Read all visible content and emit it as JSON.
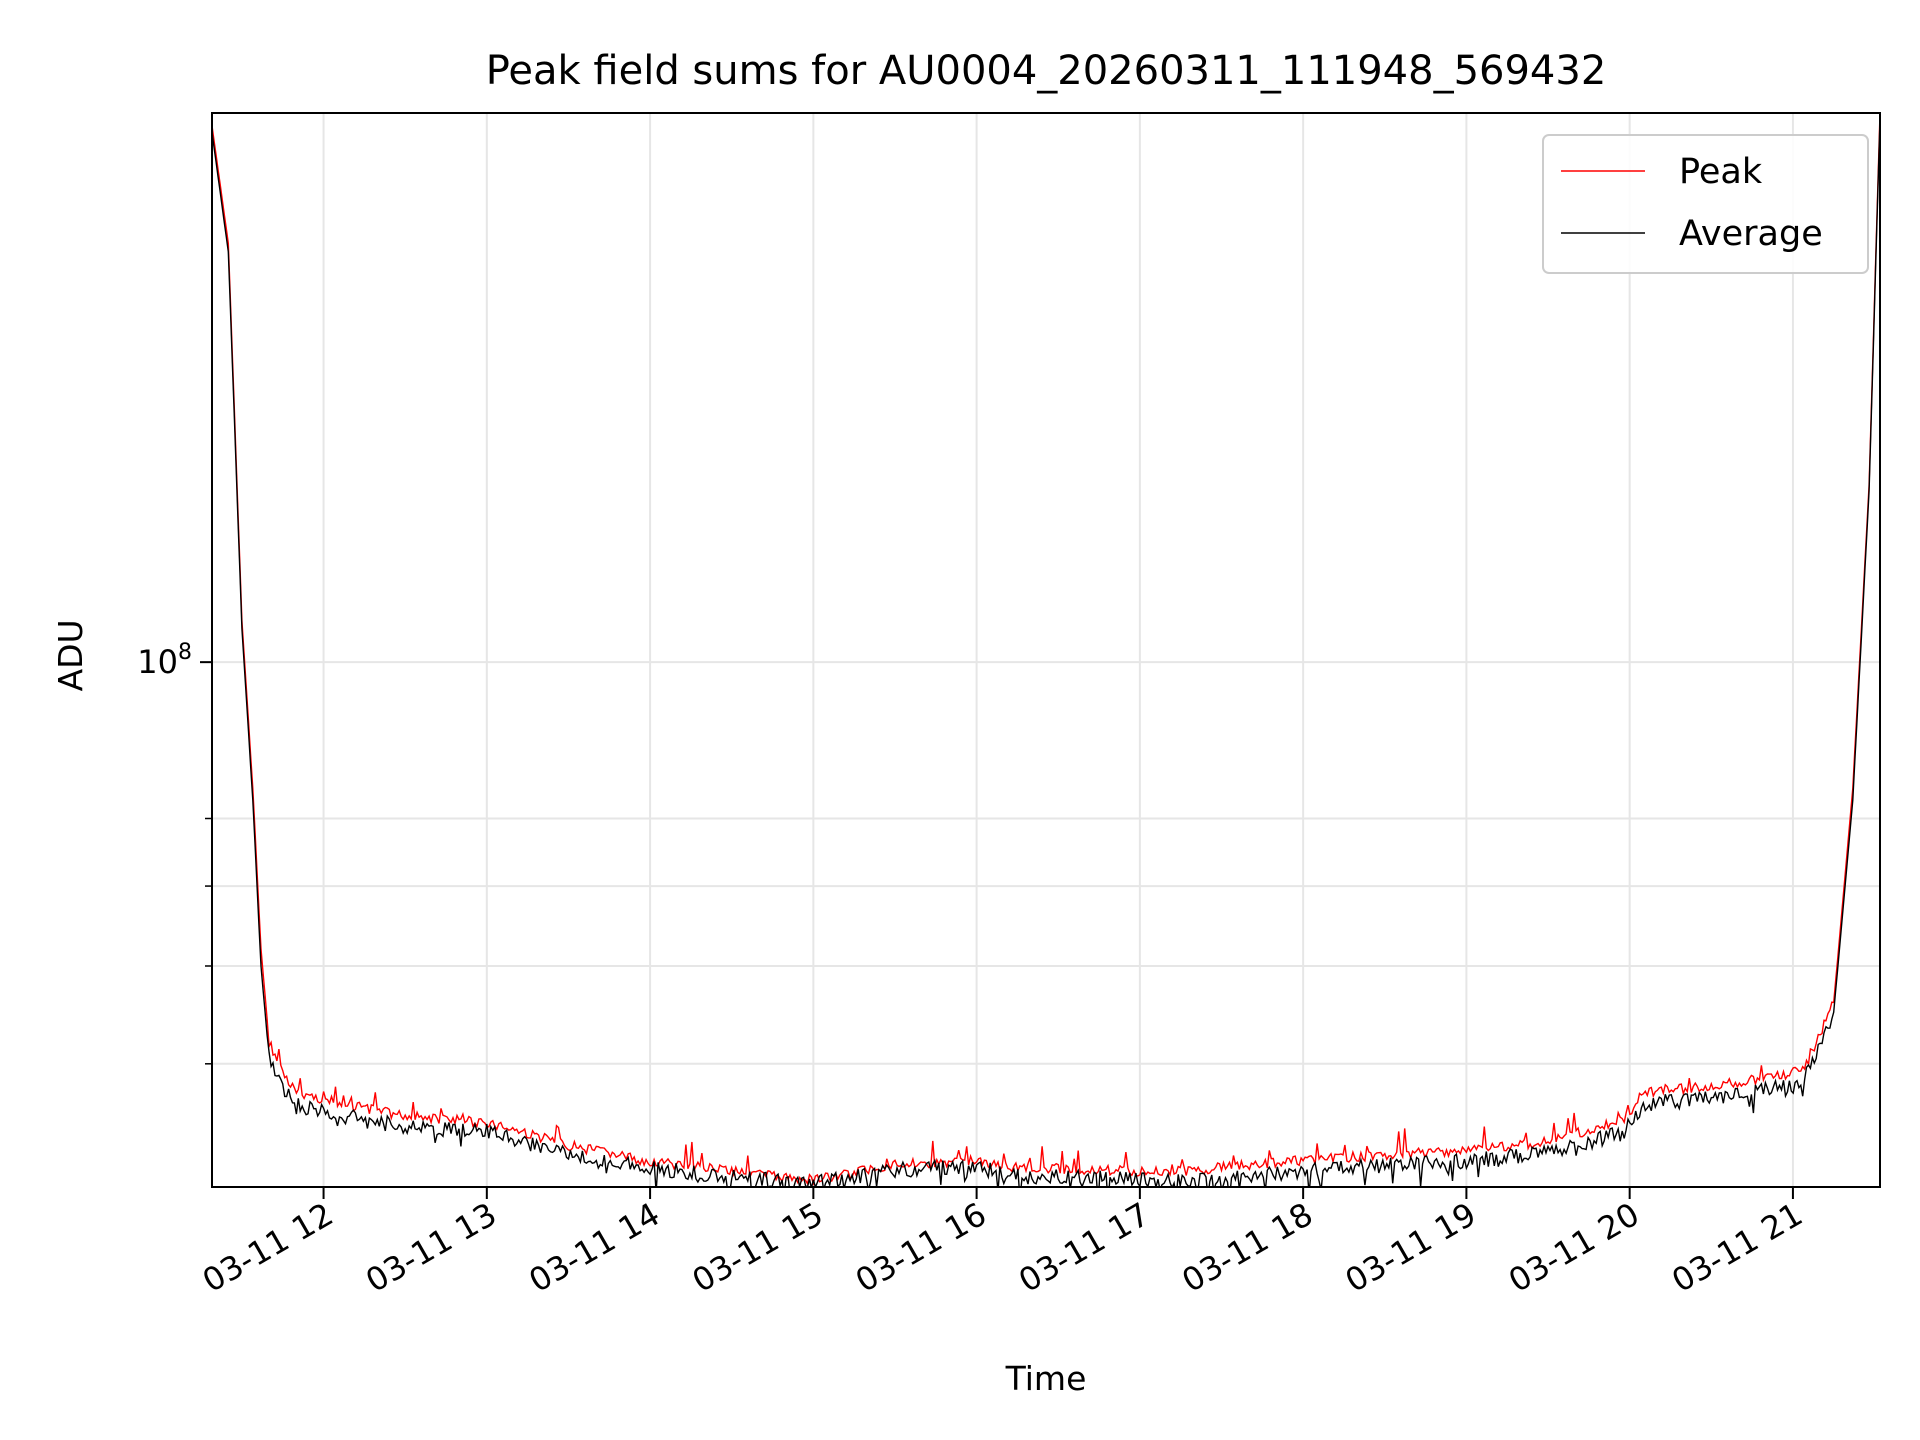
{
  "chart_data": {
    "type": "line",
    "title": "Peak field sums for AU0004_20260311_111948_569432",
    "xlabel": "Time",
    "ylabel": "ADU",
    "xlim": [
      "2026-03-11 11:19",
      "2026-03-11 21:32"
    ],
    "x_tick_labels": [
      "03-11 12",
      "03-11 13",
      "03-11 14",
      "03-11 15",
      "03-11 16",
      "03-11 17",
      "03-11 18",
      "03-11 19",
      "03-11 20",
      "03-11 21"
    ],
    "y_scale": "log",
    "ylim": [
      30200000,
      350000000
    ],
    "y_tick_major": [
      {
        "value": 100000000,
        "label": "10^8"
      }
    ],
    "y_tick_minor": [
      40000000,
      50000000,
      60000000,
      70000000
    ],
    "grid": true,
    "legend_position": "top-right",
    "series": [
      {
        "name": "Peak",
        "color": "#ff0000",
        "x": [
          "2026-03-11 11:19",
          "2026-03-11 11:25",
          "2026-03-11 11:30",
          "2026-03-11 11:34",
          "2026-03-11 11:37",
          "2026-03-11 11:40",
          "2026-03-11 11:45",
          "2026-03-11 11:50",
          "2026-03-11 12:00",
          "2026-03-11 12:30",
          "2026-03-11 13:00",
          "2026-03-11 13:30",
          "2026-03-11 14:00",
          "2026-03-11 14:30",
          "2026-03-11 14:50",
          "2026-03-11 15:00",
          "2026-03-11 15:15",
          "2026-03-11 15:30",
          "2026-03-11 16:00",
          "2026-03-11 16:10",
          "2026-03-11 16:30",
          "2026-03-11 17:00",
          "2026-03-11 17:20",
          "2026-03-11 17:30",
          "2026-03-11 18:00",
          "2026-03-11 18:30",
          "2026-03-11 19:00",
          "2026-03-11 19:30",
          "2026-03-11 19:58",
          "2026-03-11 20:05",
          "2026-03-11 20:30",
          "2026-03-11 20:58",
          "2026-03-11 21:05",
          "2026-03-11 21:15",
          "2026-03-11 21:22",
          "2026-03-11 21:28",
          "2026-03-11 21:32"
        ],
        "y": [
          340000000,
          260000000,
          110000000,
          75000000,
          52000000,
          42000000,
          39200000,
          37500000,
          36800000,
          35500000,
          35000000,
          33200000,
          32000000,
          31400000,
          30800000,
          30700000,
          31200000,
          31800000,
          32100000,
          31600000,
          31500000,
          31300000,
          31300000,
          31600000,
          32100000,
          32500000,
          32800000,
          33500000,
          35200000,
          37500000,
          38000000,
          39000000,
          40000000,
          46000000,
          75000000,
          150000000,
          350000000
        ]
      },
      {
        "name": "Average",
        "color": "#000000",
        "x": [
          "2026-03-11 11:19",
          "2026-03-11 11:25",
          "2026-03-11 11:30",
          "2026-03-11 11:34",
          "2026-03-11 11:37",
          "2026-03-11 11:40",
          "2026-03-11 11:45",
          "2026-03-11 11:50",
          "2026-03-11 12:00",
          "2026-03-11 12:30",
          "2026-03-11 13:00",
          "2026-03-11 13:30",
          "2026-03-11 14:00",
          "2026-03-11 14:30",
          "2026-03-11 14:50",
          "2026-03-11 15:00",
          "2026-03-11 15:15",
          "2026-03-11 15:30",
          "2026-03-11 16:00",
          "2026-03-11 16:10",
          "2026-03-11 16:30",
          "2026-03-11 17:00",
          "2026-03-11 17:20",
          "2026-03-11 17:30",
          "2026-03-11 18:00",
          "2026-03-11 18:30",
          "2026-03-11 19:00",
          "2026-03-11 19:30",
          "2026-03-11 19:58",
          "2026-03-11 20:05",
          "2026-03-11 20:30",
          "2026-03-11 20:58",
          "2026-03-11 21:05",
          "2026-03-11 21:15",
          "2026-03-11 21:22",
          "2026-03-11 21:28",
          "2026-03-11 21:32"
        ],
        "y": [
          335000000,
          255000000,
          108000000,
          73000000,
          50000000,
          40500000,
          37800000,
          36400000,
          35800000,
          34600000,
          34300000,
          32600000,
          31500000,
          31000000,
          30500000,
          30400000,
          30900000,
          31400000,
          31700000,
          31000000,
          30900000,
          30700000,
          30500000,
          30900000,
          31300000,
          31700000,
          32000000,
          32700000,
          34200000,
          36500000,
          37000000,
          38000000,
          39000000,
          45000000,
          73000000,
          148000000,
          345000000
        ]
      }
    ]
  }
}
